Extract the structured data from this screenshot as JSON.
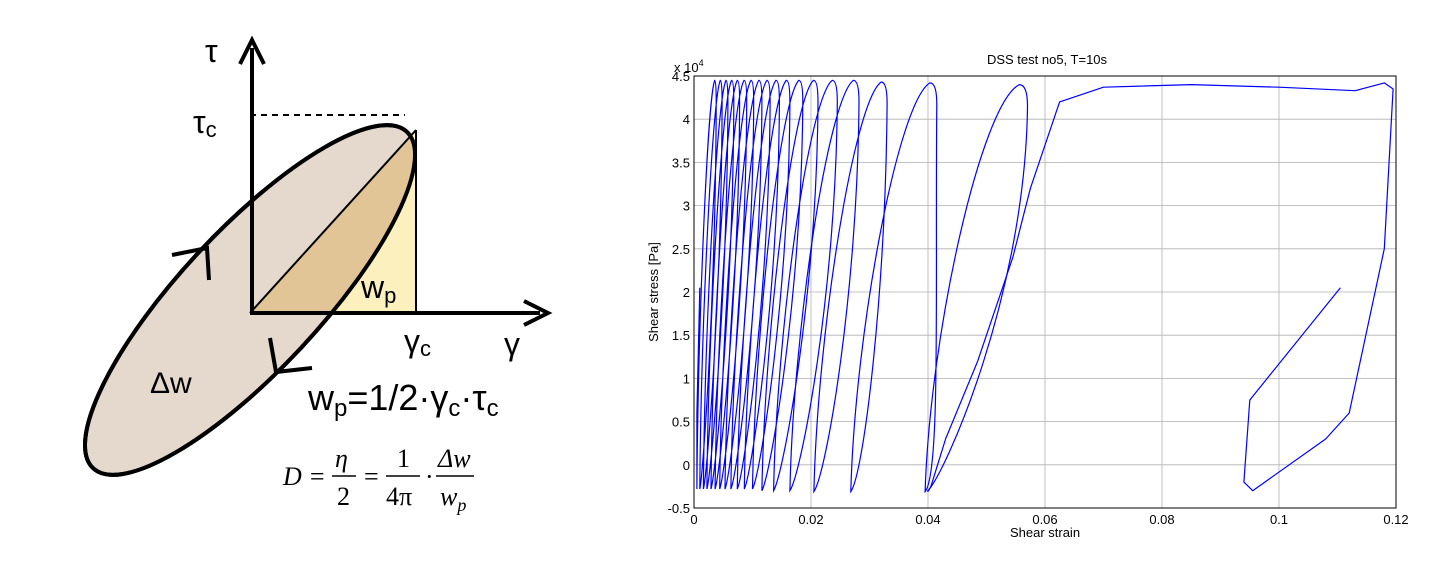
{
  "diagram": {
    "tau_label": "τ",
    "tau_c_main": "τ",
    "tau_c_sub": "c",
    "gamma_label": "γ",
    "gamma_c_main": "γ",
    "gamma_c_sub": "c",
    "wp_main": "w",
    "wp_sub": "p",
    "dw_label": "Δw",
    "formula_wp": {
      "lhs_main": "w",
      "lhs_sub": "p",
      "mid": "=1/2·γ",
      "sub1": "c",
      "dot": "·τ",
      "sub2": "c"
    },
    "formula_D": {
      "lhs": "D =",
      "eta": "η",
      "two": "2",
      "eq": "=",
      "one": "1",
      "four_pi": "4π",
      "cdot": "·",
      "dw": "Δw",
      "wp_main": "w",
      "wp_sub": "p"
    },
    "colors": {
      "ellipse_fill": "#e5d9cd",
      "wedge_fill": "#e2c596",
      "triangle_fill": "#fdf0bf",
      "stroke": "#000000"
    }
  },
  "chart_data": {
    "type": "line",
    "title": "DSS test no5, T=10s",
    "xlabel": "Shear strain",
    "ylabel": "Shear stress [Pa]",
    "y_multiplier": "x 10",
    "y_multiplier_exp": "4",
    "xlim": [
      0,
      0.12
    ],
    "ylim": [
      -0.5,
      4.5
    ],
    "xticks": [
      0,
      0.02,
      0.04,
      0.06,
      0.08,
      0.1,
      0.12
    ],
    "xtick_labels": [
      "0",
      "0.02",
      "0.04",
      "0.06",
      "0.08",
      "0.1",
      "0.12"
    ],
    "yticks": [
      -0.5,
      0,
      0.5,
      1,
      1.5,
      2,
      2.5,
      3,
      3.5,
      4,
      4.5
    ],
    "ytick_labels": [
      "-0.5",
      "0",
      "0.5",
      "1",
      "1.5",
      "2",
      "2.5",
      "3",
      "3.5",
      "4",
      "4.5"
    ],
    "grid": true,
    "line_color": "#0000ff",
    "series": [
      {
        "loops": [
          {
            "min_x": 0.0005,
            "max_x": 0.0038,
            "min_y": -0.28,
            "max_y": 4.45
          },
          {
            "min_x": 0.001,
            "max_x": 0.0048,
            "min_y": -0.28,
            "max_y": 4.45
          },
          {
            "min_x": 0.0016,
            "max_x": 0.0058,
            "min_y": -0.28,
            "max_y": 4.45
          },
          {
            "min_x": 0.0022,
            "max_x": 0.0068,
            "min_y": -0.28,
            "max_y": 4.45
          },
          {
            "min_x": 0.0029,
            "max_x": 0.0078,
            "min_y": -0.28,
            "max_y": 4.45
          },
          {
            "min_x": 0.0036,
            "max_x": 0.009,
            "min_y": -0.28,
            "max_y": 4.45
          },
          {
            "min_x": 0.0044,
            "max_x": 0.0102,
            "min_y": -0.28,
            "max_y": 4.45
          },
          {
            "min_x": 0.0053,
            "max_x": 0.0116,
            "min_y": -0.28,
            "max_y": 4.45
          },
          {
            "min_x": 0.0063,
            "max_x": 0.013,
            "min_y": -0.28,
            "max_y": 4.45
          },
          {
            "min_x": 0.0074,
            "max_x": 0.0146,
            "min_y": -0.28,
            "max_y": 4.45
          },
          {
            "min_x": 0.0086,
            "max_x": 0.0164,
            "min_y": -0.28,
            "max_y": 4.45
          },
          {
            "min_x": 0.01,
            "max_x": 0.0186,
            "min_y": -0.28,
            "max_y": 4.45
          },
          {
            "min_x": 0.0116,
            "max_x": 0.0212,
            "min_y": -0.3,
            "max_y": 4.45
          },
          {
            "min_x": 0.0136,
            "max_x": 0.0245,
            "min_y": -0.3,
            "max_y": 4.45
          },
          {
            "min_x": 0.0164,
            "max_x": 0.0282,
            "min_y": -0.3,
            "max_y": 4.45
          },
          {
            "min_x": 0.0205,
            "max_x": 0.033,
            "min_y": -0.31,
            "max_y": 4.43
          },
          {
            "min_x": 0.0268,
            "max_x": 0.0415,
            "min_y": -0.31,
            "max_y": 4.42
          },
          {
            "min_x": 0.0395,
            "max_x": 0.057,
            "min_y": -0.31,
            "max_y": 4.4
          }
        ],
        "final_cycle": [
          [
            0.1105,
            2.05
          ],
          [
            0.095,
            0.75
          ],
          [
            0.094,
            -0.2
          ],
          [
            0.0955,
            -0.3
          ],
          [
            0.108,
            0.3
          ],
          [
            0.112,
            0.6
          ],
          [
            0.118,
            2.5
          ],
          [
            0.1195,
            4.35
          ],
          [
            0.118,
            4.42
          ],
          [
            0.113,
            4.33
          ],
          [
            0.1,
            4.37
          ],
          [
            0.085,
            4.4
          ],
          [
            0.07,
            4.37
          ],
          [
            0.0625,
            4.2
          ],
          [
            0.0575,
            3.2
          ],
          [
            0.0545,
            2.4
          ],
          [
            0.0485,
            1.2
          ],
          [
            0.043,
            0.3
          ],
          [
            0.0405,
            -0.25
          ],
          [
            0.04,
            -0.31
          ]
        ],
        "start_point": [
          0.001,
          2.05
        ]
      }
    ]
  }
}
